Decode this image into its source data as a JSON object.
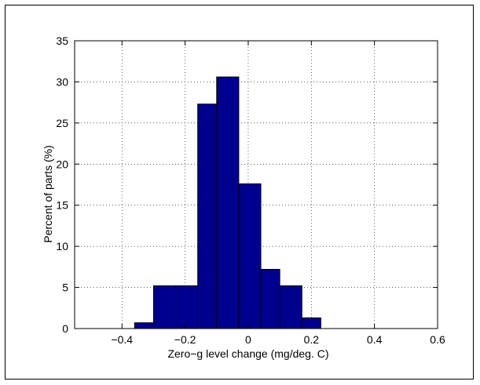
{
  "chart_data": {
    "type": "bar",
    "title": "",
    "xlabel": "Zero−g level change (mg/deg. C)",
    "ylabel": "Percent of parts (%)",
    "xlim": [
      -0.55,
      0.6
    ],
    "ylim": [
      0,
      35
    ],
    "xticks": [
      -0.4,
      -0.2,
      0,
      0.2,
      0.4,
      0.6
    ],
    "xtick_labels": [
      "−0.4",
      "−0.2",
      "0",
      "0.2",
      "0.4",
      "0.6"
    ],
    "yticks": [
      0,
      5,
      10,
      15,
      20,
      25,
      30,
      35
    ],
    "ytick_labels": [
      "0",
      "5",
      "10",
      "15",
      "20",
      "25",
      "30",
      "35"
    ],
    "grid": true,
    "bar_color": "#00008f",
    "bins": [
      {
        "x0": -0.36,
        "x1": -0.3,
        "value": 0.7
      },
      {
        "x0": -0.3,
        "x1": -0.23,
        "value": 5.2
      },
      {
        "x0": -0.23,
        "x1": -0.16,
        "value": 5.2
      },
      {
        "x0": -0.16,
        "x1": -0.1,
        "value": 27.3
      },
      {
        "x0": -0.1,
        "x1": -0.03,
        "value": 30.6
      },
      {
        "x0": -0.03,
        "x1": 0.04,
        "value": 17.6
      },
      {
        "x0": 0.04,
        "x1": 0.1,
        "value": 7.2
      },
      {
        "x0": 0.1,
        "x1": 0.17,
        "value": 5.2
      },
      {
        "x0": 0.17,
        "x1": 0.23,
        "value": 1.3
      }
    ]
  }
}
